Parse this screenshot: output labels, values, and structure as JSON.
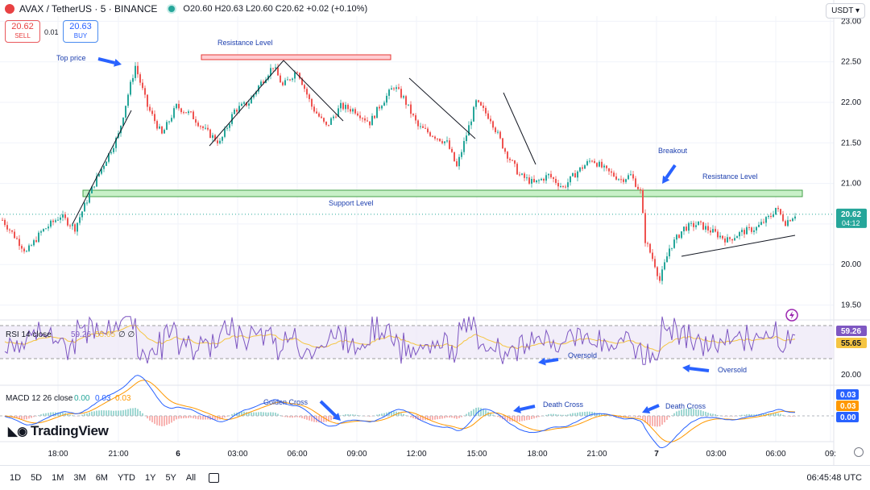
{
  "header": {
    "symbol": "AVAX / TetherUS · 5 · BINANCE",
    "ohlc_text": "O20.60 H20.63 L20.60 C20.62 +0.02 (+0.10%)",
    "sell_price": "20.62",
    "sell_label": "SELL",
    "spread": "0.01",
    "buy_price": "20.63",
    "buy_label": "BUY",
    "currency": "USDT"
  },
  "toolbar": {
    "ranges": [
      "1D",
      "5D",
      "1M",
      "3M",
      "6M",
      "YTD",
      "1Y",
      "5Y",
      "All"
    ],
    "clock": "06:45:48 UTC",
    "brand": "TradingView"
  },
  "colors": {
    "up": "#26a69a",
    "down": "#ef5350",
    "accent": "#2962ff",
    "rsi": "#7e57c2",
    "signal": "#ff9800",
    "macd": "#2962ff"
  },
  "icons": {
    "calendar": "calendar-icon",
    "settings": "gear-icon",
    "alert": "lightning-icon"
  },
  "chart_data": {
    "type": "candlestick",
    "price_axis": {
      "ticks": [
        "23.00",
        "22.50",
        "22.00",
        "21.50",
        "21.00",
        "20.50",
        "20.00",
        "19.50"
      ],
      "ylim": [
        19.45,
        23.0
      ]
    },
    "time_ticks": [
      "18:00",
      "21:00",
      "6",
      "03:00",
      "06:00",
      "09:00",
      "12:00",
      "15:00",
      "18:00",
      "21:00",
      "7",
      "03:00",
      "06:00",
      "09:"
    ],
    "last_price": "20.62",
    "countdown": "04:12",
    "path_anchors": [
      [
        0,
        20.55
      ],
      [
        10,
        20.15
      ],
      [
        16,
        20.4
      ],
      [
        24,
        20.6
      ],
      [
        30,
        20.45
      ],
      [
        38,
        21.0
      ],
      [
        48,
        21.6
      ],
      [
        52,
        22.1
      ],
      [
        55,
        22.45
      ],
      [
        60,
        21.95
      ],
      [
        66,
        21.6
      ],
      [
        72,
        21.95
      ],
      [
        78,
        21.85
      ],
      [
        84,
        21.65
      ],
      [
        90,
        21.5
      ],
      [
        96,
        21.9
      ],
      [
        102,
        22.0
      ],
      [
        106,
        22.2
      ],
      [
        112,
        22.45
      ],
      [
        116,
        22.2
      ],
      [
        122,
        22.4
      ],
      [
        128,
        21.95
      ],
      [
        134,
        21.7
      ],
      [
        140,
        21.95
      ],
      [
        146,
        21.9
      ],
      [
        152,
        21.75
      ],
      [
        156,
        21.95
      ],
      [
        162,
        22.2
      ],
      [
        166,
        22.05
      ],
      [
        172,
        21.7
      ],
      [
        178,
        21.6
      ],
      [
        184,
        21.5
      ],
      [
        188,
        21.2
      ],
      [
        192,
        21.6
      ],
      [
        196,
        22.0
      ],
      [
        202,
        21.8
      ],
      [
        208,
        21.4
      ],
      [
        214,
        21.1
      ],
      [
        220,
        21.0
      ],
      [
        226,
        21.1
      ],
      [
        232,
        20.95
      ],
      [
        238,
        21.15
      ],
      [
        244,
        21.3
      ],
      [
        250,
        21.15
      ],
      [
        256,
        21.05
      ],
      [
        260,
        21.1
      ],
      [
        264,
        20.9
      ],
      [
        266,
        20.3
      ],
      [
        270,
        20.0
      ],
      [
        272,
        19.8
      ],
      [
        276,
        20.2
      ],
      [
        282,
        20.45
      ],
      [
        288,
        20.5
      ],
      [
        294,
        20.4
      ],
      [
        300,
        20.3
      ],
      [
        306,
        20.4
      ],
      [
        312,
        20.45
      ],
      [
        318,
        20.6
      ],
      [
        320,
        20.7
      ],
      [
        324,
        20.52
      ],
      [
        328,
        20.62
      ]
    ],
    "annotations": {
      "top_price": "Top price",
      "resistance_top": "Resistance Level",
      "support": "Support Level",
      "resistance_right": "Resistance Level",
      "breakout": "Breakout",
      "oversold_1": "Oversold",
      "oversold_2": "Oversold",
      "golden_cross": "Golden Cross",
      "death_cross_1": "Death Cross",
      "death_cross_2": "Death Cross"
    },
    "rsi": {
      "label": "RSI 14 close",
      "value": "59.26",
      "ma": "55.65",
      "extra": "∅ ∅"
    },
    "macd": {
      "label": "MACD 12 26 close",
      "v1": "0.00",
      "v2": "0.03",
      "v3": "0.03",
      "axis": [
        "0.03",
        "0.03",
        "0.00"
      ]
    },
    "lower_axis_label": "20.00"
  }
}
